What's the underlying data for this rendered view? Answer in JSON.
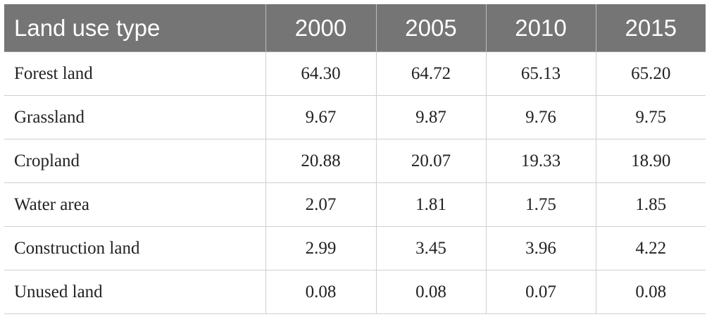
{
  "table": {
    "headers": [
      "Land use type",
      "2000",
      "2005",
      "2010",
      "2015"
    ],
    "rows": [
      {
        "label": "Forest land",
        "values": [
          "64.30",
          "64.72",
          "65.13",
          "65.20"
        ]
      },
      {
        "label": "Grassland",
        "values": [
          "9.67",
          "9.87",
          "9.76",
          "9.75"
        ]
      },
      {
        "label": "Cropland",
        "values": [
          "20.88",
          "20.07",
          "19.33",
          "18.90"
        ]
      },
      {
        "label": "Water area",
        "values": [
          "2.07",
          "1.81",
          "1.75",
          "1.85"
        ]
      },
      {
        "label": "Construction land",
        "values": [
          "2.99",
          "3.45",
          "3.96",
          "4.22"
        ]
      },
      {
        "label": "Unused land",
        "values": [
          "0.08",
          "0.08",
          "0.07",
          "0.08"
        ]
      }
    ]
  },
  "colors": {
    "header_background": "#757575",
    "header_text": "#ffffff",
    "grid_line": "#cfcfcf"
  }
}
